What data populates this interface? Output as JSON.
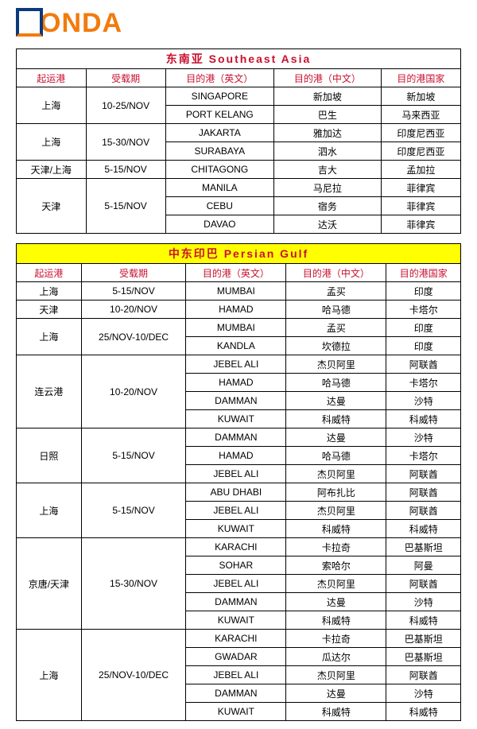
{
  "logo_text": "ONDA",
  "tables": [
    {
      "region_bg": "#ffffff",
      "region_cn": "东南亚",
      "region_en": "Southeast Asia",
      "headers": [
        "起运港",
        "受载期",
        "目的港（英文）",
        "目的港（中文）",
        "目的港国家"
      ],
      "groups": [
        {
          "origin": "上海",
          "period": "10-25/NOV",
          "rows": [
            [
              "SINGAPORE",
              "新加坡",
              "新加坡"
            ],
            [
              "PORT KELANG",
              "巴生",
              "马来西亚"
            ]
          ]
        },
        {
          "origin": "上海",
          "period": "15-30/NOV",
          "rows": [
            [
              "JAKARTA",
              "雅加达",
              "印度尼西亚"
            ],
            [
              "SURABAYA",
              "泗水",
              "印度尼西亚"
            ]
          ]
        },
        {
          "origin": "天津/上海",
          "period": "5-15/NOV",
          "rows": [
            [
              "CHITAGONG",
              "吉大",
              "孟加拉"
            ]
          ]
        },
        {
          "origin": "天津",
          "period": "5-15/NOV",
          "rows": [
            [
              "MANILA",
              "马尼拉",
              "菲律宾"
            ],
            [
              "CEBU",
              "宿务",
              "菲律宾"
            ],
            [
              "DAVAO",
              "达沃",
              "菲律宾"
            ]
          ]
        }
      ]
    },
    {
      "region_bg": "#ffff00",
      "region_cn": "中东印巴",
      "region_en": "Persian Gulf",
      "headers": [
        "起运港",
        "受载期",
        "目的港（英文）",
        "目的港（中文）",
        "目的港国家"
      ],
      "groups": [
        {
          "origin": "上海",
          "period": "5-15/NOV",
          "rows": [
            [
              "MUMBAI",
              "孟买",
              "印度"
            ]
          ]
        },
        {
          "origin": "天津",
          "period": "10-20/NOV",
          "rows": [
            [
              "HAMAD",
              "哈马德",
              "卡塔尔"
            ]
          ]
        },
        {
          "origin": "上海",
          "period": "25/NOV-10/DEC",
          "rows": [
            [
              "MUMBAI",
              "孟买",
              "印度"
            ],
            [
              "KANDLA",
              "坎德拉",
              "印度"
            ]
          ]
        },
        {
          "origin": "连云港",
          "period": "10-20/NOV",
          "rows": [
            [
              "JEBEL ALI",
              "杰贝阿里",
              "阿联酋"
            ],
            [
              "HAMAD",
              "哈马德",
              "卡塔尔"
            ],
            [
              "DAMMAN",
              "达曼",
              "沙特"
            ],
            [
              "KUWAIT",
              "科威特",
              "科威特"
            ]
          ]
        },
        {
          "origin": "日照",
          "period": "5-15/NOV",
          "rows": [
            [
              "DAMMAN",
              "达曼",
              "沙特"
            ],
            [
              "HAMAD",
              "哈马德",
              "卡塔尔"
            ],
            [
              "JEBEL ALI",
              "杰贝阿里",
              "阿联酋"
            ]
          ]
        },
        {
          "origin": "上海",
          "period": "5-15/NOV",
          "rows": [
            [
              "ABU DHABI",
              "阿布扎比",
              "阿联酋"
            ],
            [
              "JEBEL ALI",
              "杰贝阿里",
              "阿联酋"
            ],
            [
              "KUWAIT",
              "科威特",
              "科威特"
            ]
          ]
        },
        {
          "origin": "京唐/天津",
          "period": "15-30/NOV",
          "rows": [
            [
              "KARACHI",
              "卡拉奇",
              "巴基斯坦"
            ],
            [
              "SOHAR",
              "索哈尔",
              "阿曼"
            ],
            [
              "JEBEL ALI",
              "杰贝阿里",
              "阿联酋"
            ],
            [
              "DAMMAN",
              "达曼",
              "沙特"
            ],
            [
              "KUWAIT",
              "科威特",
              "科威特"
            ]
          ]
        },
        {
          "origin": "上海",
          "period": "25/NOV-10/DEC",
          "rows": [
            [
              "KARACHI",
              "卡拉奇",
              "巴基斯坦"
            ],
            [
              "GWADAR",
              "瓜达尔",
              "巴基斯坦"
            ],
            [
              "JEBEL ALI",
              "杰贝阿里",
              "阿联酋"
            ],
            [
              "DAMMAN",
              "达曼",
              "沙特"
            ],
            [
              "KUWAIT",
              "科威特",
              "科威特"
            ]
          ]
        }
      ]
    }
  ]
}
